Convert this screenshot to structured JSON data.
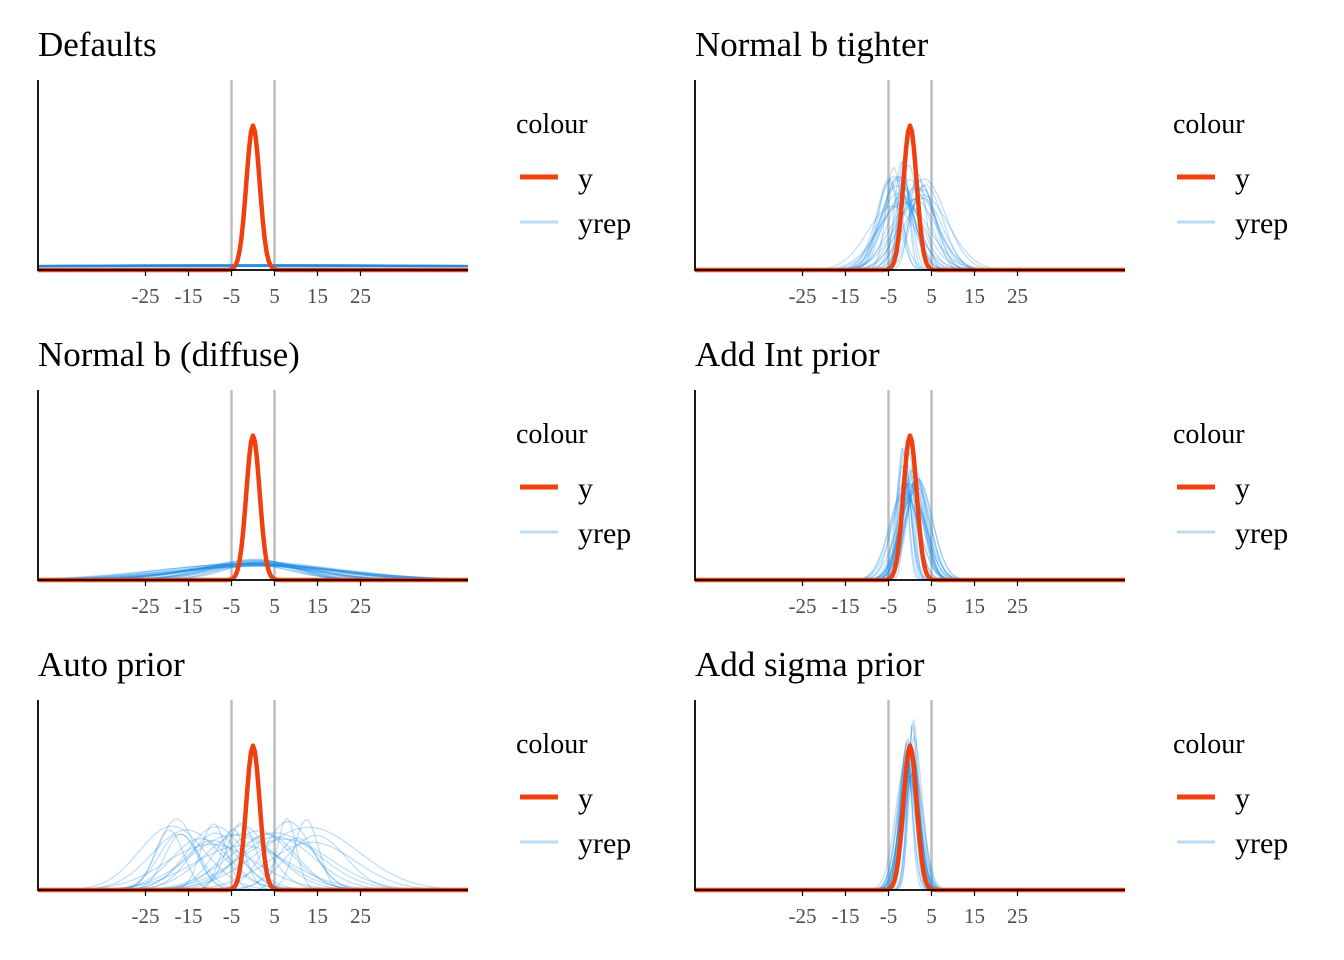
{
  "figure": {
    "colors": {
      "y": "#f0400f",
      "yrep": "#1e8ce6",
      "ref_line": "#bdbdbd",
      "axis": "#000000",
      "background": "#ffffff"
    }
  },
  "chart_data": [
    {
      "type": "line",
      "title": "Defaults",
      "xticks": [
        -25,
        -15,
        -5,
        5,
        15,
        25
      ],
      "xlim": [
        -50,
        50
      ],
      "ref_lines": [
        -5,
        5
      ],
      "legend": {
        "title": "colour",
        "entries": [
          "y",
          "yrep"
        ],
        "placement": "right"
      },
      "series": [
        {
          "name": "y",
          "kind": "density",
          "mean": 0,
          "sd": 1.55,
          "peak_fraction": 0.76
        },
        {
          "name": "yrep",
          "kind": "density-draws",
          "draws": 30,
          "mean_center": 0,
          "mean_spread": 3,
          "sd_range": [
            60,
            180
          ],
          "peak_fraction": 0.025
        }
      ]
    },
    {
      "type": "line",
      "title": "Normal b tighter",
      "xticks": [
        -25,
        -15,
        -5,
        5,
        15,
        25
      ],
      "xlim": [
        -50,
        50
      ],
      "ref_lines": [
        -5,
        5
      ],
      "legend": {
        "title": "colour",
        "entries": [
          "y",
          "yrep"
        ],
        "placement": "right"
      },
      "series": [
        {
          "name": "y",
          "kind": "density",
          "mean": 0,
          "sd": 1.55,
          "peak_fraction": 0.76
        },
        {
          "name": "yrep",
          "kind": "density-draws",
          "draws": 30,
          "mean_center": 0,
          "mean_spread": 5,
          "sd_range": [
            1.2,
            6
          ],
          "peak_fraction": 0.5
        }
      ]
    },
    {
      "type": "line",
      "title": "Normal b (diffuse)",
      "xticks": [
        -25,
        -15,
        -5,
        5,
        15,
        25
      ],
      "xlim": [
        -50,
        50
      ],
      "ref_lines": [
        -5,
        5
      ],
      "legend": {
        "title": "colour",
        "entries": [
          "y",
          "yrep"
        ],
        "placement": "right"
      },
      "series": [
        {
          "name": "y",
          "kind": "density",
          "mean": 0,
          "sd": 1.55,
          "peak_fraction": 0.76
        },
        {
          "name": "yrep",
          "kind": "density-draws",
          "draws": 30,
          "mean_center": 0,
          "mean_spread": 3,
          "sd_range": [
            8,
            22
          ],
          "peak_fraction": 0.09
        }
      ]
    },
    {
      "type": "line",
      "title": "Add Int prior",
      "xticks": [
        -25,
        -15,
        -5,
        5,
        15,
        25
      ],
      "xlim": [
        -50,
        50
      ],
      "ref_lines": [
        -5,
        5
      ],
      "legend": {
        "title": "colour",
        "entries": [
          "y",
          "yrep"
        ],
        "placement": "right"
      },
      "series": [
        {
          "name": "y",
          "kind": "density",
          "mean": 0,
          "sd": 1.55,
          "peak_fraction": 0.76
        },
        {
          "name": "yrep",
          "kind": "density-draws",
          "draws": 30,
          "mean_center": 0,
          "mean_spread": 1.8,
          "sd_range": [
            1,
            4
          ],
          "peak_fraction": 0.58
        }
      ]
    },
    {
      "type": "line",
      "title": "Auto prior",
      "xticks": [
        -25,
        -15,
        -5,
        5,
        15,
        25
      ],
      "xlim": [
        -50,
        50
      ],
      "ref_lines": [
        -5,
        5
      ],
      "legend": {
        "title": "colour",
        "entries": [
          "y",
          "yrep"
        ],
        "placement": "right"
      },
      "series": [
        {
          "name": "y",
          "kind": "density",
          "mean": 0,
          "sd": 1.55,
          "peak_fraction": 0.76
        },
        {
          "name": "yrep",
          "kind": "density-draws",
          "draws": 30,
          "mean_center": -2,
          "mean_spread": 18,
          "sd_range": [
            2,
            12
          ],
          "peak_fraction": 0.36
        }
      ]
    },
    {
      "type": "line",
      "title": "Add sigma prior",
      "xticks": [
        -25,
        -15,
        -5,
        5,
        15,
        25
      ],
      "xlim": [
        -50,
        50
      ],
      "ref_lines": [
        -5,
        5
      ],
      "legend": {
        "title": "colour",
        "entries": [
          "y",
          "yrep"
        ],
        "placement": "right"
      },
      "series": [
        {
          "name": "y",
          "kind": "density",
          "mean": 0,
          "sd": 1.55,
          "peak_fraction": 0.76
        },
        {
          "name": "yrep",
          "kind": "density-draws",
          "draws": 30,
          "mean_center": 0,
          "mean_spread": 1,
          "sd_range": [
            1,
            2.5
          ],
          "peak_fraction": 0.76
        }
      ]
    }
  ]
}
